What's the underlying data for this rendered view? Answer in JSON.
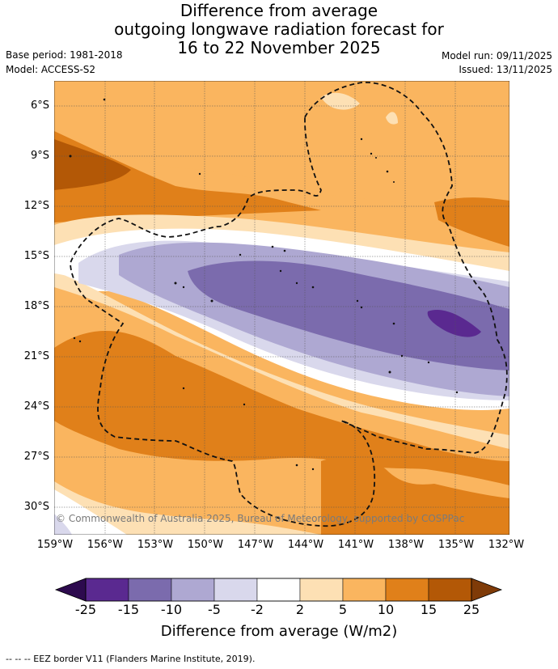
{
  "title": {
    "line1": "Difference from average",
    "line2": "outgoing longwave radiation forecast for",
    "line3": "16 to 22 November 2025"
  },
  "meta": {
    "base_period": "Base period: 1981-2018",
    "model": "Model: ACCESS-S2",
    "model_run": "Model run: 09/11/2025",
    "issued": "Issued: 13/11/2025"
  },
  "map": {
    "lat_labels": [
      "6°S",
      "9°S",
      "12°S",
      "15°S",
      "18°S",
      "21°S",
      "24°S",
      "27°S",
      "30°S"
    ],
    "lon_labels": [
      "159°W",
      "156°W",
      "153°W",
      "150°W",
      "147°W",
      "144°W",
      "141°W",
      "138°W",
      "135°W",
      "132°W"
    ],
    "copyright": "© Commonwealth of Australia 2025, Bureau of Meteorology, supported by COSPPac"
  },
  "colorbar": {
    "tick_labels": [
      "-25",
      "-15",
      "-10",
      "-5",
      "-2",
      "2",
      "5",
      "10",
      "15",
      "25"
    ],
    "title": "Difference from average (W/m2)",
    "colors": [
      "#2d0a4e",
      "#5a2990",
      "#7b6bad",
      "#aea8d2",
      "#d9d8ec",
      "#ffffff",
      "#fde0b4",
      "#fab55f",
      "#e0801a",
      "#b35806",
      "#7f3b08"
    ]
  },
  "footer": {
    "eez_note": "--  --  -- EEZ border V11 (Flanders Marine Institute, 2019)."
  }
}
